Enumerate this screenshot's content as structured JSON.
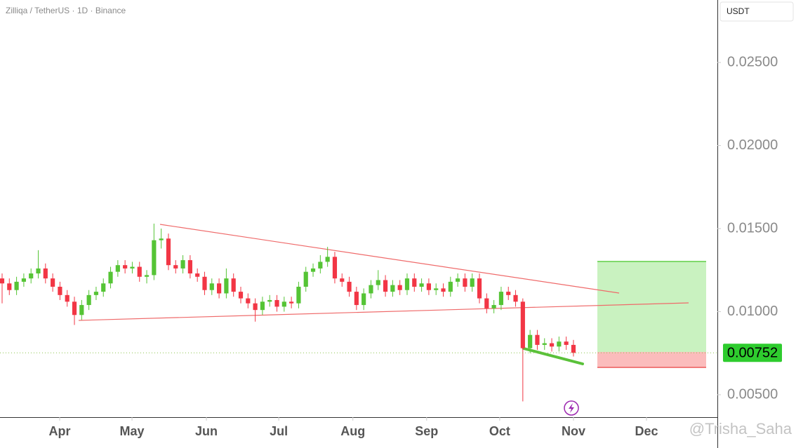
{
  "chart_data": {
    "type": "candlestick",
    "title": "Zilliqa / TetherUS · 1D · Binance",
    "currency": "USDT",
    "watermark": "@Trisha_Saha",
    "last_label": "0.00752",
    "up_color": "#55c435",
    "down_color": "#f23645",
    "open": [
      0.012,
      0.0117,
      0.0113,
      0.0118,
      0.012,
      0.0123,
      0.0126,
      0.012,
      0.0115,
      0.011,
      0.0106,
      0.0098,
      0.0104,
      0.011,
      0.0112,
      0.0117,
      0.0124,
      0.0128,
      0.0126,
      0.0127,
      0.0121,
      0.0122,
      0.0143,
      0.0144,
      0.0128,
      0.0126,
      0.0131,
      0.0123,
      0.0121,
      0.0113,
      0.0117,
      0.0111,
      0.012,
      0.0112,
      0.0108,
      0.0105,
      0.0101,
      0.0106,
      0.0107,
      0.0103,
      0.0106,
      0.0105,
      0.0115,
      0.0124,
      0.0126,
      0.013,
      0.0133,
      0.012,
      0.0118,
      0.0112,
      0.0104,
      0.0111,
      0.0116,
      0.0119,
      0.0112,
      0.0116,
      0.0113,
      0.012,
      0.0115,
      0.0117,
      0.0113,
      0.0114,
      0.0112,
      0.0118,
      0.012,
      0.0115,
      0.012,
      0.0108,
      0.0102,
      0.0104,
      0.0112,
      0.011,
      0.0106,
      0.0078,
      0.0086,
      0.008,
      0.0081,
      0.0079,
      0.0082,
      0.008
    ],
    "high": [
      0.0123,
      0.012,
      0.0121,
      0.0123,
      0.0126,
      0.0137,
      0.0129,
      0.0123,
      0.0118,
      0.0113,
      0.0109,
      0.0107,
      0.0113,
      0.0115,
      0.012,
      0.0127,
      0.0131,
      0.0131,
      0.013,
      0.013,
      0.0125,
      0.0153,
      0.015,
      0.0147,
      0.0131,
      0.0134,
      0.0134,
      0.0126,
      0.0124,
      0.012,
      0.012,
      0.0126,
      0.0123,
      0.0115,
      0.0111,
      0.0108,
      0.0109,
      0.011,
      0.011,
      0.0109,
      0.0109,
      0.0118,
      0.0127,
      0.0129,
      0.0134,
      0.0139,
      0.0136,
      0.0123,
      0.0121,
      0.0115,
      0.0114,
      0.0119,
      0.0125,
      0.0122,
      0.0119,
      0.0119,
      0.0123,
      0.0123,
      0.012,
      0.012,
      0.0117,
      0.0117,
      0.0121,
      0.0123,
      0.0123,
      0.0123,
      0.0123,
      0.0111,
      0.0107,
      0.0115,
      0.0115,
      0.0113,
      0.0108,
      0.0089,
      0.0089,
      0.0084,
      0.0084,
      0.0085,
      0.0085,
      0.0083
    ],
    "low": [
      0.0105,
      0.011,
      0.011,
      0.0115,
      0.0117,
      0.012,
      0.0117,
      0.0112,
      0.0107,
      0.0103,
      0.0092,
      0.0095,
      0.0101,
      0.0107,
      0.0109,
      0.0114,
      0.0121,
      0.0123,
      0.0123,
      0.0118,
      0.0117,
      0.0119,
      0.0138,
      0.0125,
      0.0123,
      0.0123,
      0.012,
      0.0118,
      0.011,
      0.011,
      0.0108,
      0.0108,
      0.0109,
      0.0105,
      0.0102,
      0.0094,
      0.0098,
      0.0103,
      0.01,
      0.01,
      0.0102,
      0.0102,
      0.0112,
      0.0121,
      0.0123,
      0.0127,
      0.0117,
      0.0115,
      0.0109,
      0.0101,
      0.0101,
      0.0108,
      0.0113,
      0.0109,
      0.0109,
      0.011,
      0.011,
      0.0112,
      0.0112,
      0.011,
      0.011,
      0.0109,
      0.0109,
      0.0115,
      0.0112,
      0.0112,
      0.0105,
      0.0099,
      0.0099,
      0.0101,
      0.0107,
      0.0103,
      0.0046,
      0.0075,
      0.0077,
      0.0077,
      0.0076,
      0.0076,
      0.0077,
      0.0073
    ],
    "close": [
      0.0117,
      0.0113,
      0.0118,
      0.012,
      0.0123,
      0.0126,
      0.012,
      0.0115,
      0.011,
      0.0106,
      0.0098,
      0.0104,
      0.011,
      0.0112,
      0.0117,
      0.0124,
      0.0128,
      0.0126,
      0.0127,
      0.0121,
      0.0122,
      0.0143,
      0.0144,
      0.0128,
      0.0126,
      0.0131,
      0.0123,
      0.0121,
      0.0113,
      0.0117,
      0.0111,
      0.012,
      0.0112,
      0.0108,
      0.0105,
      0.0101,
      0.0106,
      0.0107,
      0.0103,
      0.0106,
      0.0105,
      0.0115,
      0.0124,
      0.0126,
      0.013,
      0.0133,
      0.012,
      0.0118,
      0.0112,
      0.0104,
      0.0111,
      0.0116,
      0.0119,
      0.0112,
      0.0116,
      0.0113,
      0.012,
      0.0115,
      0.0117,
      0.0113,
      0.0114,
      0.0112,
      0.0118,
      0.012,
      0.0115,
      0.012,
      0.0108,
      0.0102,
      0.0104,
      0.0112,
      0.011,
      0.0106,
      0.0078,
      0.0086,
      0.008,
      0.0081,
      0.0079,
      0.0082,
      0.008,
      0.00752
    ],
    "xlim": [
      -0.29,
      98.9
    ],
    "xticks": [
      {
        "value": 7.96,
        "label": "Apr"
      },
      {
        "value": 17.96,
        "label": "May"
      },
      {
        "value": 28.25,
        "label": "Jun"
      },
      {
        "value": 38.25,
        "label": "Jul"
      },
      {
        "value": 48.5,
        "label": "Aug"
      },
      {
        "value": 58.7,
        "label": "Sep"
      },
      {
        "value": 68.8,
        "label": "Oct"
      },
      {
        "value": 79.0,
        "label": "Nov"
      },
      {
        "value": 89.1,
        "label": "Dec"
      }
    ],
    "ylim": [
      0.00365,
      0.02876
    ],
    "yticks": [
      {
        "value": 0.005,
        "label": "0.00500"
      },
      {
        "value": 0.01,
        "label": "0.01000"
      },
      {
        "value": 0.015,
        "label": "0.01500"
      },
      {
        "value": 0.02,
        "label": "0.02000"
      },
      {
        "value": 0.025,
        "label": "0.02500"
      }
    ]
  }
}
